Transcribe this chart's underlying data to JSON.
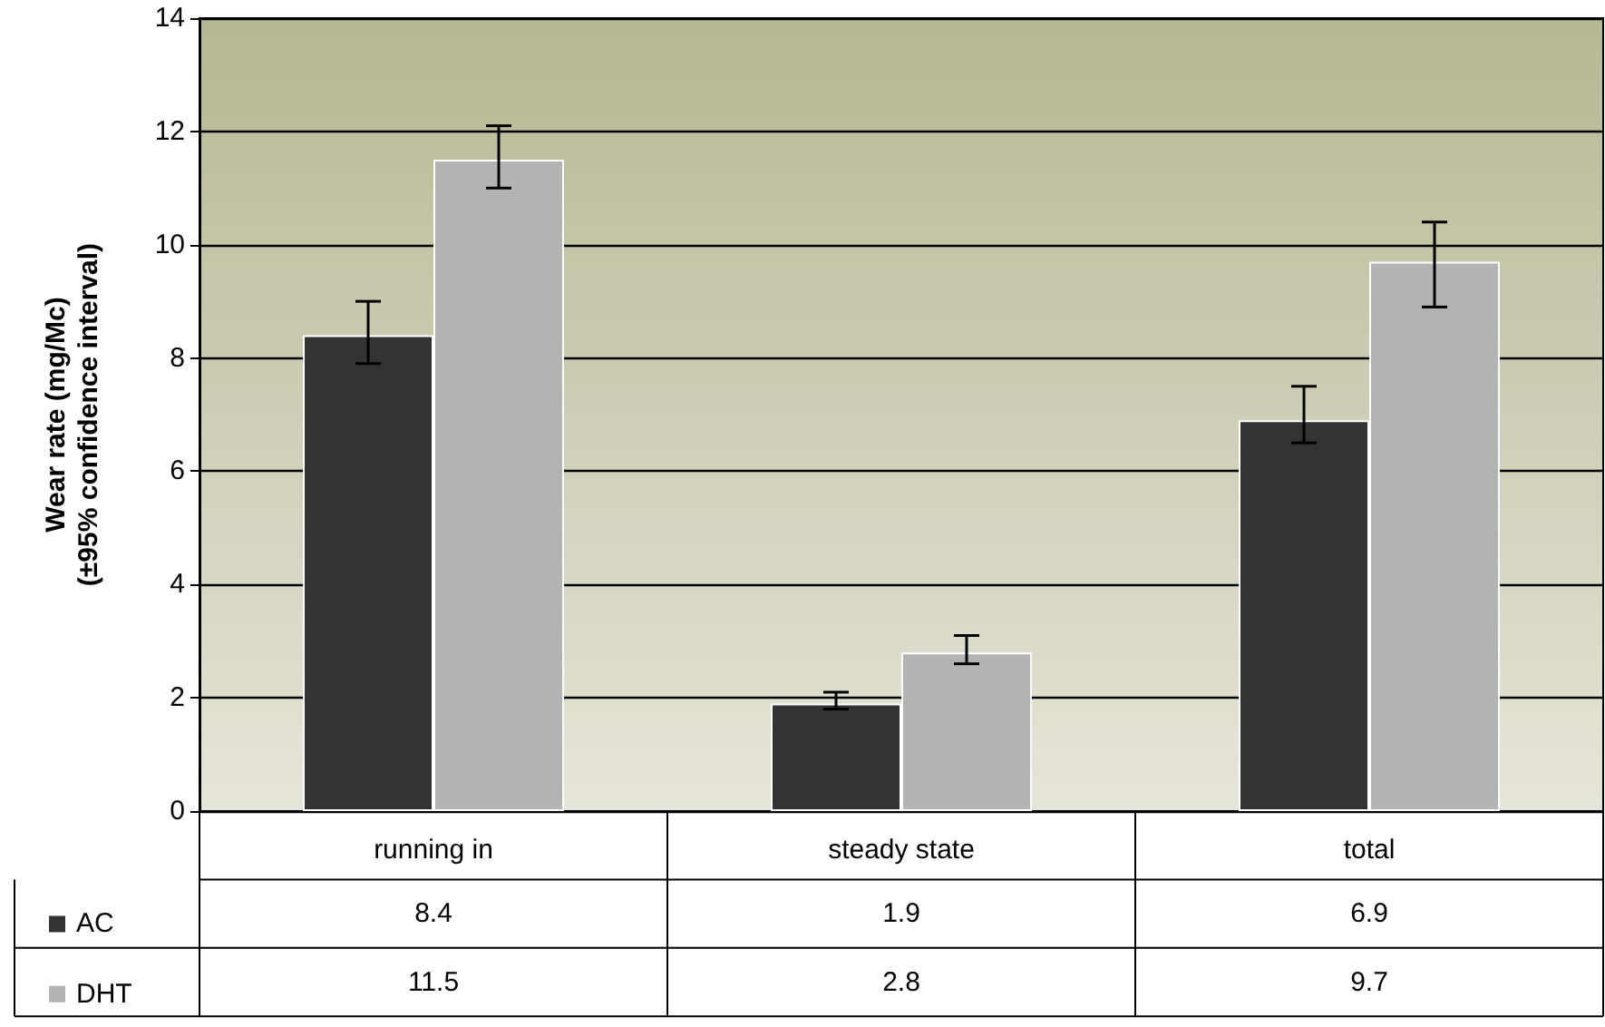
{
  "chart_data": {
    "type": "bar",
    "ylabel": "Wear rate (mg/Mc)\n(±95% confidence interval)",
    "categories": [
      "running in",
      "steady state",
      "total"
    ],
    "series": [
      {
        "name": "AC",
        "color": "#333333",
        "values": [
          8.4,
          1.9,
          6.9
        ],
        "errors": [
          [
            7.9,
            9.0
          ],
          [
            1.8,
            2.1
          ],
          [
            6.5,
            7.5
          ]
        ]
      },
      {
        "name": "DHT",
        "color": "#b3b3b3",
        "values": [
          11.5,
          2.8,
          9.7
        ],
        "errors": [
          [
            11.0,
            12.1
          ],
          [
            2.6,
            3.1
          ],
          [
            8.9,
            10.4
          ]
        ]
      }
    ],
    "ylim": [
      0,
      14
    ],
    "yticks": [
      0,
      2,
      4,
      6,
      8,
      10,
      12,
      14
    ],
    "grid": "y",
    "legend": "bottom left",
    "data_labels": true
  }
}
